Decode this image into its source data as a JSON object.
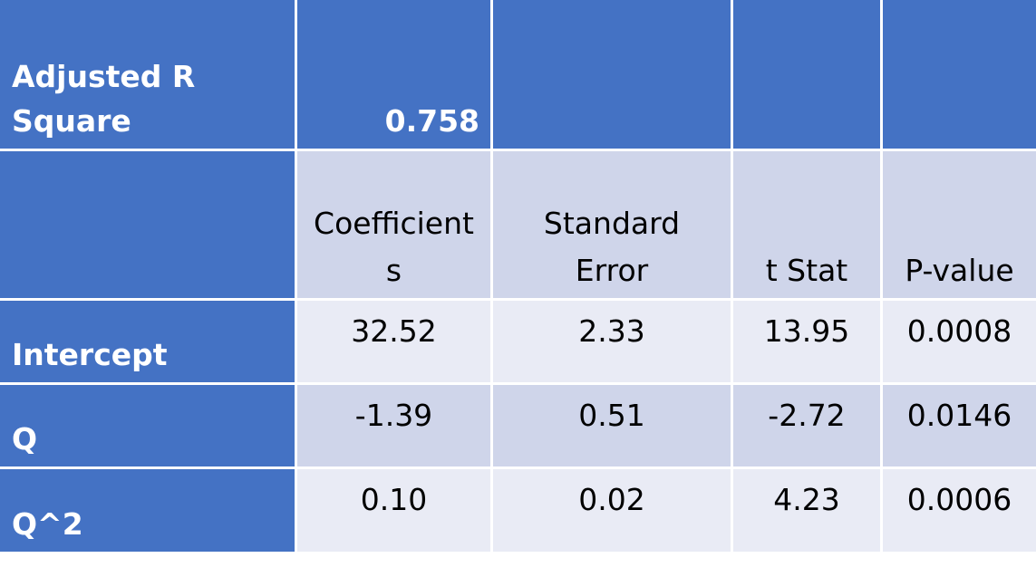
{
  "colors": {
    "header_blue": "#4472c4",
    "band_dark": "#cfd5ea",
    "band_light": "#e9ebf5",
    "grid_line": "#ffffff"
  },
  "summary": {
    "label": "Adjusted R\nSquare",
    "value": "0.758"
  },
  "columns": [
    "Coefficient\ns",
    "Standard\nError",
    "t Stat",
    "P-value"
  ],
  "rows": [
    {
      "label": "Intercept",
      "values": [
        "32.52",
        "2.33",
        "13.95",
        "0.0008"
      ]
    },
    {
      "label": "Q",
      "values": [
        "-1.39",
        "0.51",
        "-2.72",
        "0.0146"
      ]
    },
    {
      "label": "Q^2",
      "values": [
        "0.10",
        "0.02",
        "4.23",
        "0.0006"
      ]
    }
  ]
}
